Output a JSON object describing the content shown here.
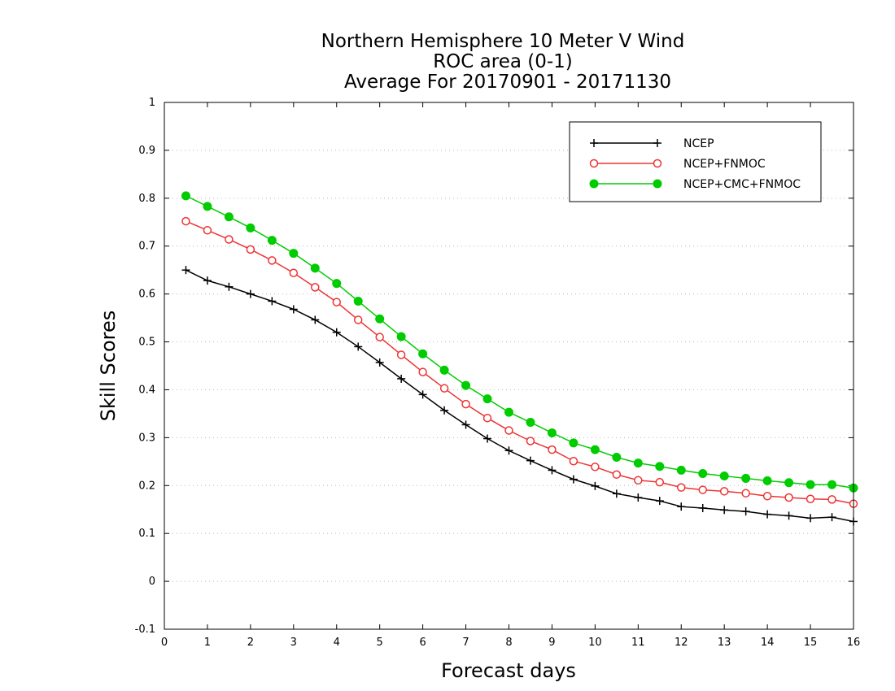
{
  "chart_data": {
    "type": "line",
    "title_lines": [
      "Northern Hemisphere 10 Meter V Wind",
      "ROC area (0-1)",
      "Average For 20170901 - 20171130"
    ],
    "xlabel": "Forecast days",
    "ylabel": "Skill Scores",
    "xlim": [
      0,
      16
    ],
    "ylim": [
      -0.1,
      1
    ],
    "x_ticks": [
      "0",
      "1",
      "2",
      "3",
      "4",
      "5",
      "6",
      "7",
      "8",
      "9",
      "10",
      "11",
      "12",
      "13",
      "14",
      "15",
      "16"
    ],
    "y_ticks": [
      "-0.1",
      "0",
      "0.1",
      "0.2",
      "0.3",
      "0.4",
      "0.5",
      "0.6",
      "0.7",
      "0.8",
      "0.9",
      "1"
    ],
    "grid": "horizontal dotted",
    "legend_position": "top-right",
    "x": [
      0.5,
      1,
      1.5,
      2,
      2.5,
      3,
      3.5,
      4,
      4.5,
      5,
      5.5,
      6,
      6.5,
      7,
      7.5,
      8,
      8.5,
      9,
      9.5,
      10,
      10.5,
      11,
      11.5,
      12,
      12.5,
      13,
      13.5,
      14,
      14.5,
      15,
      15.5,
      16
    ],
    "series": [
      {
        "name": "NCEP",
        "color": "#000000",
        "marker": "plus",
        "values": [
          0.65,
          0.628,
          0.615,
          0.6,
          0.585,
          0.568,
          0.546,
          0.52,
          0.49,
          0.457,
          0.423,
          0.39,
          0.357,
          0.327,
          0.298,
          0.273,
          0.252,
          0.232,
          0.213,
          0.199,
          0.183,
          0.175,
          0.168,
          0.156,
          0.153,
          0.149,
          0.146,
          0.14,
          0.137,
          0.132,
          0.134,
          0.125
        ]
      },
      {
        "name": "NCEP+FNMOC",
        "color": "#ee3333",
        "marker": "open-circle",
        "values": [
          0.752,
          0.733,
          0.714,
          0.693,
          0.67,
          0.644,
          0.614,
          0.583,
          0.546,
          0.51,
          0.473,
          0.437,
          0.403,
          0.37,
          0.341,
          0.315,
          0.293,
          0.275,
          0.251,
          0.239,
          0.223,
          0.211,
          0.207,
          0.196,
          0.191,
          0.188,
          0.184,
          0.178,
          0.175,
          0.172,
          0.171,
          0.162
        ]
      },
      {
        "name": "NCEP+CMC+FNMOC",
        "color": "#00cc00",
        "marker": "filled-circle",
        "values": [
          0.805,
          0.783,
          0.761,
          0.738,
          0.712,
          0.685,
          0.654,
          0.622,
          0.585,
          0.548,
          0.511,
          0.475,
          0.441,
          0.409,
          0.381,
          0.353,
          0.332,
          0.31,
          0.289,
          0.275,
          0.259,
          0.247,
          0.24,
          0.232,
          0.225,
          0.22,
          0.215,
          0.21,
          0.206,
          0.202,
          0.202,
          0.195
        ]
      }
    ]
  }
}
